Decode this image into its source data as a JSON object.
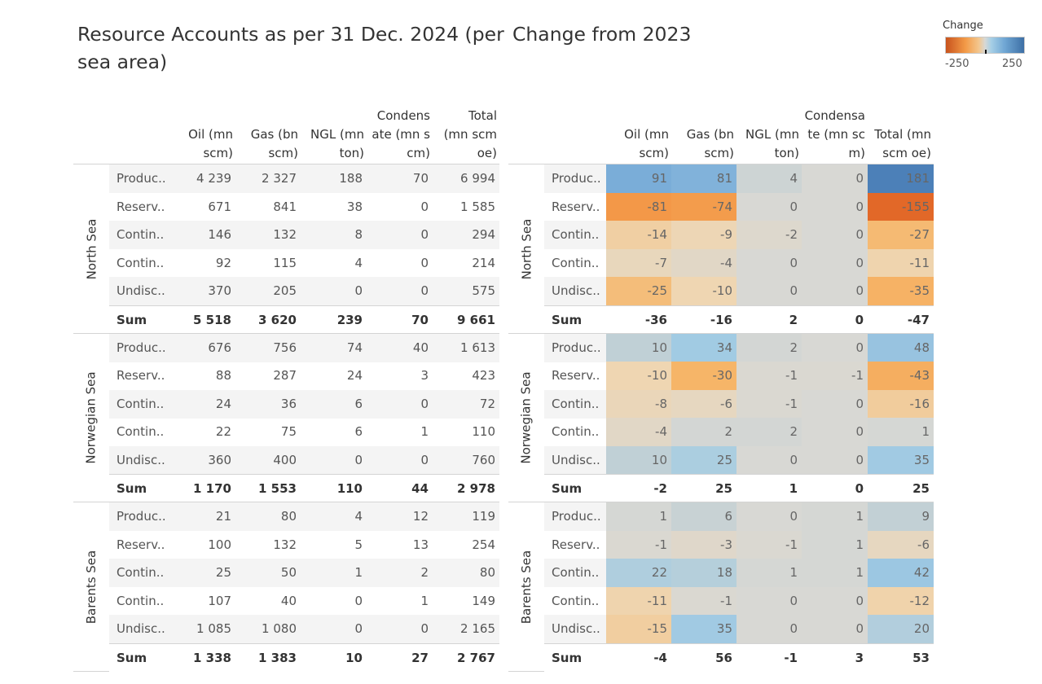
{
  "left_title": "Resource Accounts as per 31 Dec. 2024 (per sea area)",
  "right_title": "Change from 2023",
  "legend": {
    "title": "Change",
    "min_label": "-250",
    "max_label": "250",
    "min_value": -250,
    "max_value": 250,
    "colors": {
      "negative": "#c8531d",
      "neutral": "#d8d8d4",
      "positive": "#3d6fa5"
    }
  },
  "left_columns": [
    "Oil (mn scm)",
    "Gas (bn scm)",
    "NGL (mn ton)",
    "Condensate (mn scm)",
    "Total (mn scm oe)"
  ],
  "right_columns": [
    "Oil (mn scm)",
    "Gas (bn scm)",
    "NGL (mn ton)",
    "Condensate (mn scm)",
    "Total (mn scm oe)"
  ],
  "sum_label": "Sum",
  "chart_data": [
    {
      "type": "table",
      "title": "Resource Accounts as per 31 Dec. 2024 (per sea area)",
      "columns": [
        "Oil (mn scm)",
        "Gas (bn scm)",
        "NGL (mn ton)",
        "Condensate (mn scm)",
        "Total (mn scm oe)"
      ],
      "groups": [
        {
          "name": "North Sea",
          "rows": [
            {
              "label": "Produc..",
              "values": [
                "4 239",
                "2 327",
                "188",
                "70",
                "6 994"
              ]
            },
            {
              "label": "Reserv..",
              "values": [
                "671",
                "841",
                "38",
                "0",
                "1 585"
              ]
            },
            {
              "label": "Contin..",
              "values": [
                "146",
                "132",
                "8",
                "0",
                "294"
              ]
            },
            {
              "label": "Contin..",
              "values": [
                "92",
                "115",
                "4",
                "0",
                "214"
              ]
            },
            {
              "label": "Undisc..",
              "values": [
                "370",
                "205",
                "0",
                "0",
                "575"
              ]
            }
          ],
          "sum": [
            "5 518",
            "3 620",
            "239",
            "70",
            "9 661"
          ]
        },
        {
          "name": "Norwegian Sea",
          "rows": [
            {
              "label": "Produc..",
              "values": [
                "676",
                "756",
                "74",
                "40",
                "1 613"
              ]
            },
            {
              "label": "Reserv..",
              "values": [
                "88",
                "287",
                "24",
                "3",
                "423"
              ]
            },
            {
              "label": "Contin..",
              "values": [
                "24",
                "36",
                "6",
                "0",
                "72"
              ]
            },
            {
              "label": "Contin..",
              "values": [
                "22",
                "75",
                "6",
                "1",
                "110"
              ]
            },
            {
              "label": "Undisc..",
              "values": [
                "360",
                "400",
                "0",
                "0",
                "760"
              ]
            }
          ],
          "sum": [
            "1 170",
            "1 553",
            "110",
            "44",
            "2 978"
          ]
        },
        {
          "name": "Barents Sea",
          "rows": [
            {
              "label": "Produc..",
              "values": [
                "21",
                "80",
                "4",
                "12",
                "119"
              ]
            },
            {
              "label": "Reserv..",
              "values": [
                "100",
                "132",
                "5",
                "13",
                "254"
              ]
            },
            {
              "label": "Contin..",
              "values": [
                "25",
                "50",
                "1",
                "2",
                "80"
              ]
            },
            {
              "label": "Contin..",
              "values": [
                "107",
                "40",
                "0",
                "1",
                "149"
              ]
            },
            {
              "label": "Undisc..",
              "values": [
                "1 085",
                "1 080",
                "0",
                "0",
                "2 165"
              ]
            }
          ],
          "sum": [
            "1 338",
            "1 383",
            "10",
            "27",
            "2 767"
          ]
        }
      ]
    },
    {
      "type": "heatmap",
      "title": "Change from 2023",
      "columns": [
        "Oil (mn scm)",
        "Gas (bn scm)",
        "NGL (mn ton)",
        "Condensate (mn scm)",
        "Total (mn scm oe)"
      ],
      "color_range": [
        -250,
        250
      ],
      "groups": [
        {
          "name": "North Sea",
          "rows": [
            {
              "label": "Produc..",
              "values": [
                91,
                81,
                4,
                0,
                181
              ]
            },
            {
              "label": "Reserv..",
              "values": [
                -81,
                -74,
                0,
                0,
                -155
              ]
            },
            {
              "label": "Contin..",
              "values": [
                -14,
                -9,
                -2,
                0,
                -27
              ]
            },
            {
              "label": "Contin..",
              "values": [
                -7,
                -4,
                0,
                0,
                -11
              ]
            },
            {
              "label": "Undisc..",
              "values": [
                -25,
                -10,
                0,
                0,
                -35
              ]
            }
          ],
          "sum": [
            -36,
            -16,
            2,
            0,
            -47
          ]
        },
        {
          "name": "Norwegian Sea",
          "rows": [
            {
              "label": "Produc..",
              "values": [
                10,
                34,
                2,
                0,
                48
              ]
            },
            {
              "label": "Reserv..",
              "values": [
                -10,
                -30,
                -1,
                -1,
                -43
              ]
            },
            {
              "label": "Contin..",
              "values": [
                -8,
                -6,
                -1,
                0,
                -16
              ]
            },
            {
              "label": "Contin..",
              "values": [
                -4,
                2,
                2,
                0,
                1
              ]
            },
            {
              "label": "Undisc..",
              "values": [
                10,
                25,
                0,
                0,
                35
              ]
            }
          ],
          "sum": [
            -2,
            25,
            1,
            0,
            25
          ]
        },
        {
          "name": "Barents Sea",
          "rows": [
            {
              "label": "Produc..",
              "values": [
                1,
                6,
                0,
                1,
                9
              ]
            },
            {
              "label": "Reserv..",
              "values": [
                -1,
                -3,
                -1,
                1,
                -6
              ]
            },
            {
              "label": "Contin..",
              "values": [
                22,
                18,
                1,
                1,
                42
              ]
            },
            {
              "label": "Contin..",
              "values": [
                -11,
                -1,
                0,
                0,
                -12
              ]
            },
            {
              "label": "Undisc..",
              "values": [
                -15,
                35,
                0,
                0,
                20
              ]
            }
          ],
          "sum": [
            -4,
            56,
            -1,
            3,
            53
          ]
        }
      ]
    }
  ]
}
